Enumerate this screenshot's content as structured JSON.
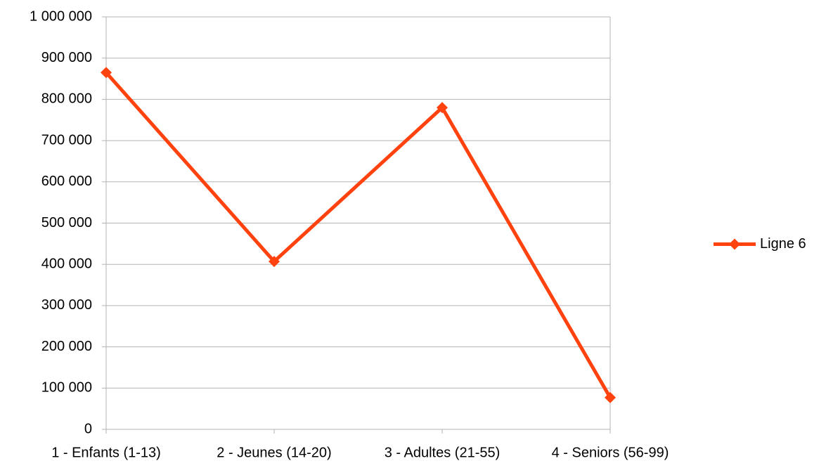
{
  "chart_data": {
    "type": "line",
    "categories": [
      "1 - Enfants (1-13)",
      "2 - Jeunes (14-20)",
      "3 - Adultes (21-55)",
      "4 - Seniors (56-99)"
    ],
    "series": [
      {
        "name": "Ligne 6",
        "color": "#ff420e",
        "values": [
          865000,
          407000,
          780000,
          77000
        ]
      }
    ],
    "ylim": [
      0,
      1000000
    ],
    "yticks": [
      0,
      {
        "value": 100000,
        "label": "100 000"
      },
      {
        "value": 200000,
        "label": "200 000"
      },
      {
        "value": 300000,
        "label": "300 000"
      },
      {
        "value": 400000,
        "label": "400 000"
      },
      {
        "value": 500000,
        "label": "500 000"
      },
      {
        "value": 600000,
        "label": "600 000"
      },
      {
        "value": 700000,
        "label": "700 000"
      },
      {
        "value": 800000,
        "label": "800 000"
      },
      {
        "value": 900000,
        "label": "900 000"
      },
      {
        "value": 1000000,
        "label": "1 000 000"
      }
    ],
    "grid": true,
    "legend": "right"
  }
}
